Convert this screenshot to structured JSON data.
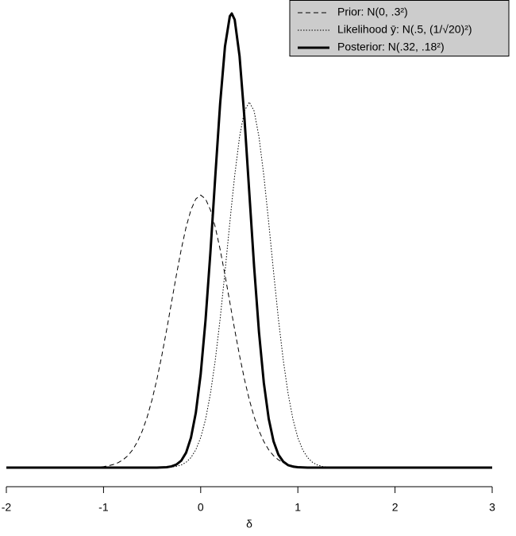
{
  "chart_data": {
    "type": "line",
    "x_label": "δ",
    "xlim": [
      -2,
      3
    ],
    "xticks": [
      -2,
      -1,
      0,
      1,
      2,
      3
    ],
    "ylim": [
      0,
      2.216
    ],
    "x": [
      -2,
      -1.5,
      -1.2,
      -1.15,
      -1.1,
      -1.05,
      -1,
      -0.95,
      -0.9,
      -0.85,
      -0.8,
      -0.75,
      -0.7,
      -0.65,
      -0.6,
      -0.55,
      -0.5,
      -0.45,
      -0.4,
      -0.35,
      -0.3,
      -0.25,
      -0.2,
      -0.15,
      -0.1,
      -0.05,
      0,
      0.05,
      0.1,
      0.15,
      0.2,
      0.25,
      0.3,
      0.32,
      0.35,
      0.4,
      0.45,
      0.5,
      0.55,
      0.6,
      0.65,
      0.7,
      0.75,
      0.8,
      0.85,
      0.9,
      0.95,
      1,
      1.05,
      1.1,
      1.15,
      1.2,
      1.25,
      1.3,
      1.35,
      1.4,
      1.45,
      1.5,
      2,
      2.5,
      3
    ],
    "legend_position": "upper right",
    "series": [
      {
        "name": "Prior: N(0, .3²)",
        "color": "#000000",
        "dash": "dashed",
        "linewidth": 1,
        "values": [
          0,
          0,
          0,
          0.001,
          0.002,
          0.003,
          0.005,
          0.009,
          0.015,
          0.024,
          0.038,
          0.058,
          0.087,
          0.127,
          0.18,
          0.248,
          0.332,
          0.432,
          0.547,
          0.673,
          0.807,
          0.94,
          1.065,
          1.174,
          1.258,
          1.311,
          1.33,
          1.311,
          1.258,
          1.174,
          1.065,
          0.94,
          0.807,
          0.753,
          0.673,
          0.547,
          0.432,
          0.332,
          0.248,
          0.18,
          0.127,
          0.087,
          0.058,
          0.038,
          0.024,
          0.015,
          0.009,
          0.005,
          0.003,
          0.002,
          0.001,
          0,
          0,
          0,
          0,
          0,
          0,
          0,
          0,
          0,
          0
        ]
      },
      {
        "name": "Likelihood ȳ: N(.5, (1/√20)²)",
        "color": "#000000",
        "dash": "dotted",
        "linewidth": 1,
        "values": [
          0,
          0,
          0,
          0,
          0,
          0,
          0,
          0,
          0,
          0,
          0,
          0,
          0,
          0,
          0,
          0,
          0,
          0,
          0.001,
          0.001,
          0.003,
          0.006,
          0.013,
          0.026,
          0.049,
          0.087,
          0.146,
          0.235,
          0.36,
          0.524,
          0.725,
          0.955,
          1.196,
          1.29,
          1.425,
          1.614,
          1.74,
          1.784,
          1.74,
          1.614,
          1.425,
          1.196,
          0.955,
          0.725,
          0.524,
          0.36,
          0.235,
          0.146,
          0.087,
          0.049,
          0.026,
          0.013,
          0.006,
          0.003,
          0.001,
          0.001,
          0,
          0,
          0,
          0,
          0
        ]
      },
      {
        "name": "Posterior: N(.32, .18²)",
        "color": "#000000",
        "dash": "solid",
        "linewidth": 3,
        "values": [
          0,
          0,
          0,
          0,
          0,
          0,
          0,
          0,
          0,
          0,
          0,
          0,
          0,
          0,
          0,
          0,
          0,
          0,
          0.001,
          0.002,
          0.006,
          0.015,
          0.034,
          0.073,
          0.146,
          0.268,
          0.456,
          0.72,
          1.05,
          1.419,
          1.775,
          2.055,
          2.203,
          2.216,
          2.186,
          2.008,
          1.708,
          1.344,
          0.98,
          0.661,
          0.413,
          0.239,
          0.128,
          0.063,
          0.029,
          0.012,
          0.005,
          0.002,
          0.001,
          0,
          0,
          0,
          0,
          0,
          0,
          0,
          0,
          0,
          0,
          0,
          0
        ]
      }
    ]
  }
}
